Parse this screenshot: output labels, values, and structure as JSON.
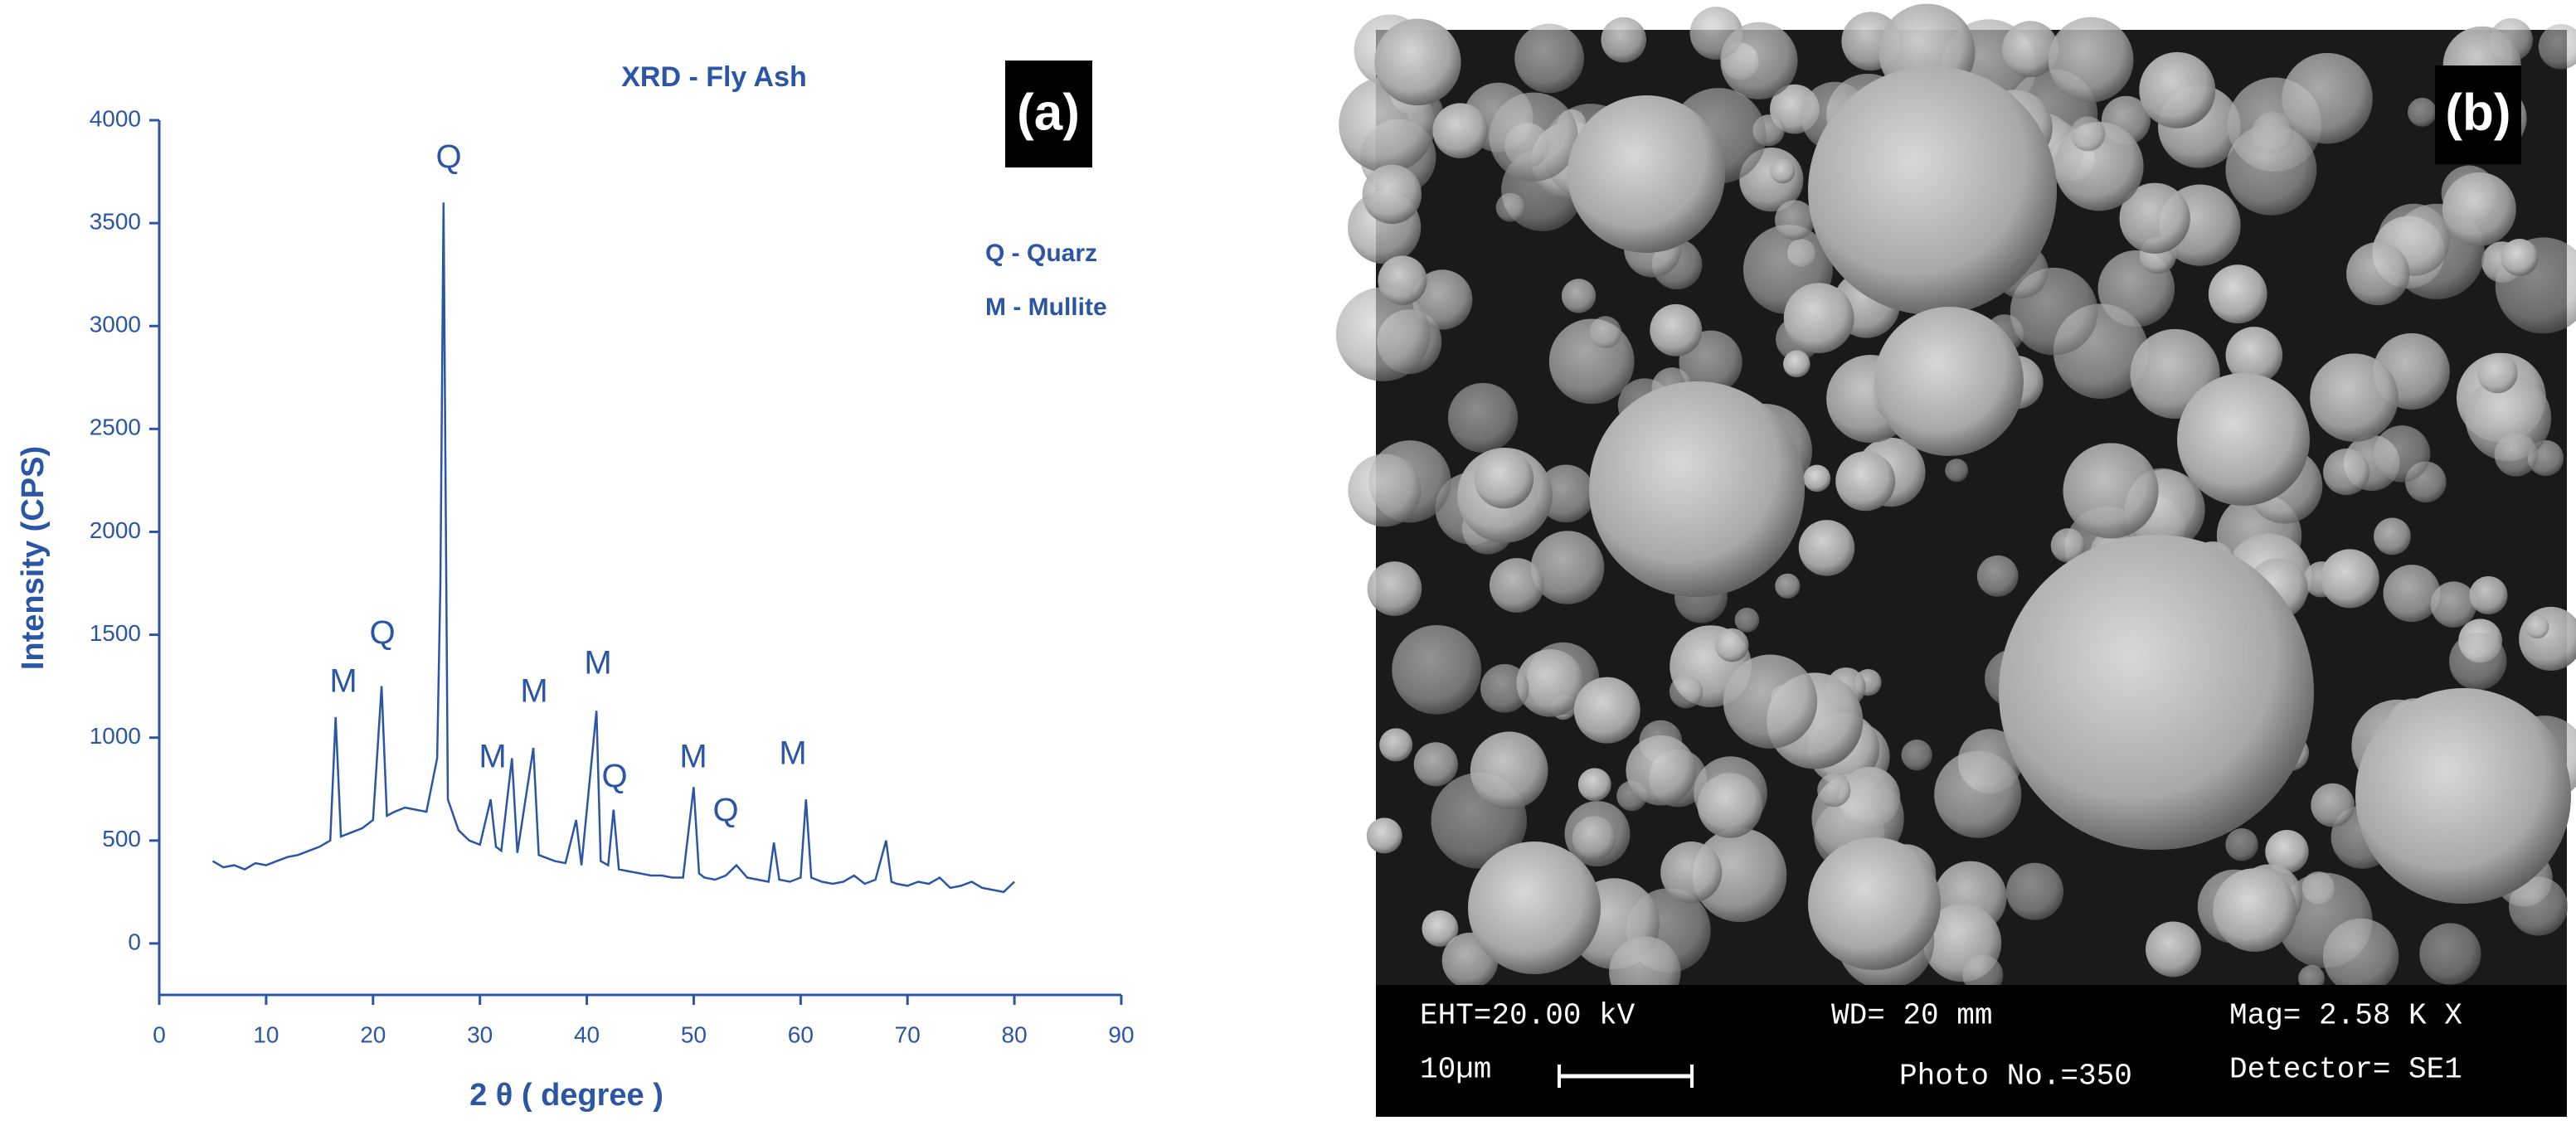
{
  "chart_data": {
    "type": "line",
    "title": "XRD - Fly Ash",
    "panel_label": "(a)",
    "x_label": "2 θ ( degree )",
    "y_label": "Intensity (CPS)",
    "legend_text": [
      "Q - Quarz",
      "M - Mullite"
    ],
    "annotations": [
      "M",
      "Q",
      "Q",
      "M",
      "M",
      "M",
      "Q",
      "M",
      "Q",
      "M"
    ],
    "color": "#2b55a5",
    "x": [
      5,
      6,
      7,
      8,
      9,
      10,
      11,
      12,
      13,
      14,
      15,
      16,
      16.5,
      17,
      18,
      19,
      20,
      20.8,
      21.3,
      22,
      23,
      24,
      25,
      26,
      26.3,
      26.6,
      27,
      28,
      29,
      30,
      31,
      31.5,
      32,
      33,
      33.5,
      35,
      35.5,
      36,
      37,
      38,
      39,
      39.5,
      40.9,
      41.3,
      42,
      42.5,
      43,
      44,
      45,
      46,
      47,
      48,
      49,
      50,
      50.5,
      51,
      52,
      53,
      54,
      55,
      56,
      57,
      57.5,
      58,
      59,
      60,
      60.5,
      61,
      62,
      63,
      64,
      65,
      66,
      67,
      68,
      68.5,
      69,
      70,
      71,
      72,
      73,
      74,
      75,
      76,
      77,
      78,
      79,
      80
    ],
    "values": [
      400,
      370,
      380,
      360,
      390,
      380,
      400,
      420,
      430,
      450,
      470,
      500,
      1100,
      520,
      540,
      560,
      600,
      1250,
      620,
      640,
      660,
      650,
      640,
      900,
      1750,
      3600,
      700,
      550,
      500,
      480,
      700,
      470,
      450,
      900,
      440,
      950,
      430,
      420,
      400,
      390,
      600,
      380,
      1130,
      400,
      380,
      650,
      360,
      350,
      340,
      330,
      330,
      320,
      320,
      760,
      340,
      320,
      310,
      330,
      380,
      320,
      310,
      300,
      490,
      310,
      300,
      320,
      700,
      320,
      300,
      290,
      300,
      330,
      290,
      310,
      500,
      300,
      290,
      280,
      300,
      290,
      320,
      270,
      280,
      300,
      270,
      260,
      250,
      300
    ],
    "xlim": [
      0,
      90
    ],
    "xticks": [
      0,
      10,
      20,
      30,
      40,
      50,
      60,
      70,
      80,
      90
    ],
    "ylim": [
      -250,
      4000
    ],
    "yticks": [
      0,
      500,
      1000,
      1500,
      2000,
      2500,
      3000,
      3500,
      4000
    ]
  },
  "sem_image": {
    "panel_label": "(b)",
    "info": [
      "EHT=20.00 kV",
      "WD=  20 mm",
      "Mag=  2.58 K X",
      "10µm",
      "Photo No.=350",
      "Detector= SE1"
    ]
  }
}
